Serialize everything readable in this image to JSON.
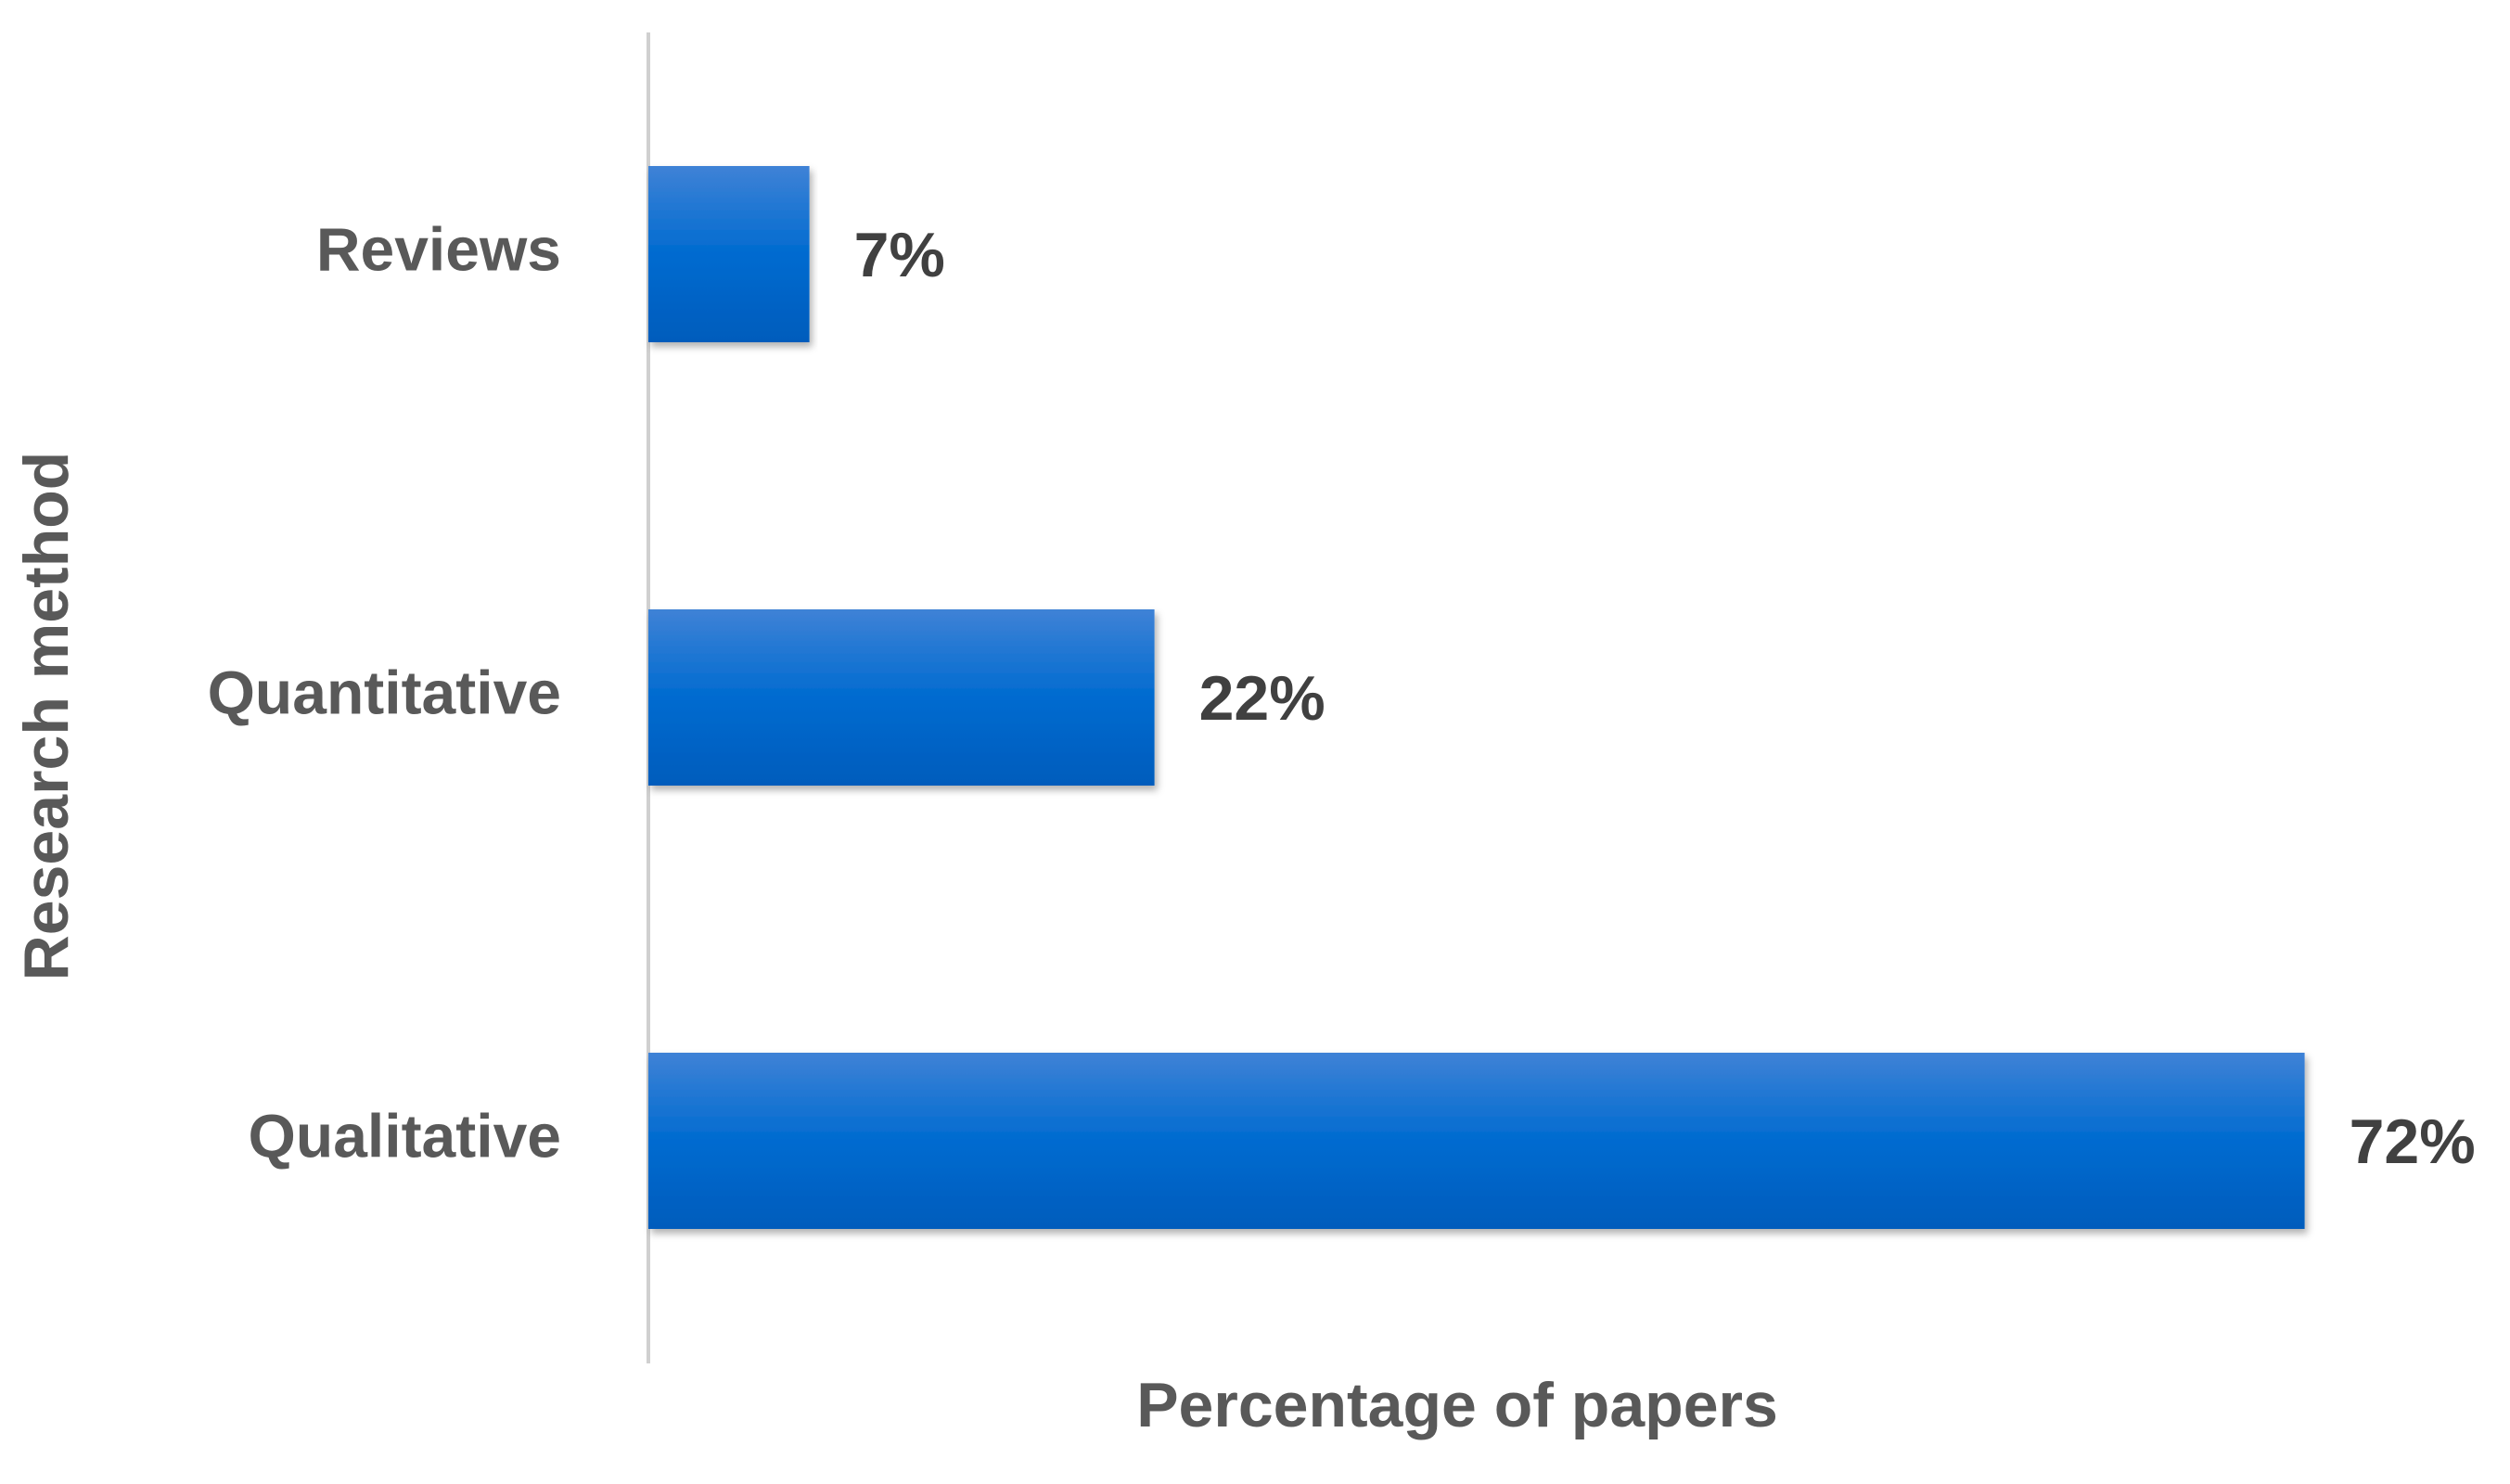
{
  "chart_data": {
    "type": "bar",
    "orientation": "horizontal",
    "x_label": "Percentage of papers",
    "y_label": "Research method",
    "categories": [
      "Reviews",
      "Quantitative",
      "Qualitative"
    ],
    "values": [
      7,
      22,
      72
    ],
    "value_labels": [
      "7%",
      "22%",
      "72%"
    ],
    "color": "#0066cc",
    "xlim": [
      0,
      80
    ],
    "grid": false
  }
}
